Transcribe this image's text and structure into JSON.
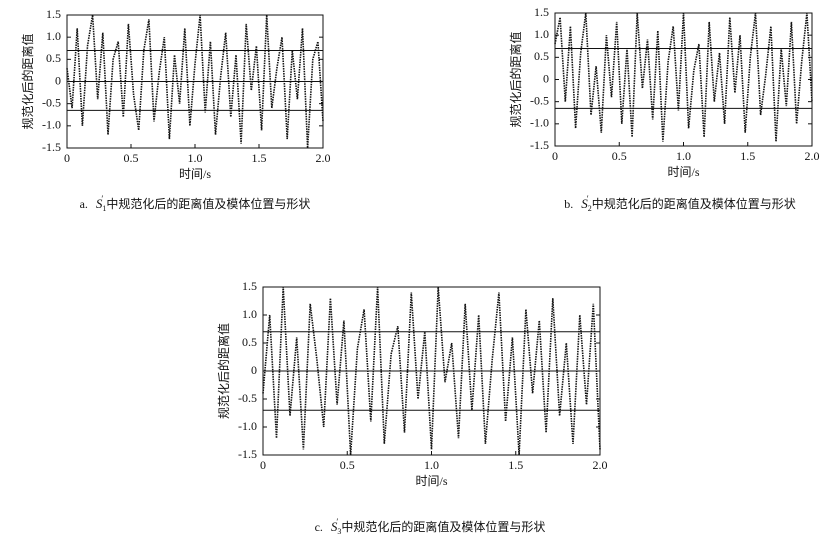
{
  "chart_data": [
    {
      "type": "line",
      "ylabel": "规范化后的距离值",
      "xlabel": "时间/s",
      "caption": {
        "label": "a.",
        "symbol": "S",
        "subscript": "1",
        "superscript": "′",
        "text": "中规范化后的距离值及模体位置与形状"
      },
      "xlim": [
        0,
        2
      ],
      "ylim": [
        -1.5,
        1.5
      ],
      "xticks": [
        0,
        0.5,
        {
          "value": 1,
          "label": "1.0"
        },
        1.5,
        {
          "value": 2,
          "label": "2.0"
        }
      ],
      "yticks": [
        1.5,
        {
          "value": 1,
          "label": "1.0"
        },
        0.5,
        0,
        -0.5,
        {
          "value": -1,
          "label": "-1.0"
        },
        -1.5
      ],
      "threshold_lines": [
        0.7,
        0,
        -0.65
      ],
      "color": "#111111",
      "x": [
        0,
        0.04,
        0.08,
        0.12,
        0.16,
        0.2,
        0.24,
        0.28,
        0.32,
        0.36,
        0.4,
        0.44,
        0.48,
        0.52,
        0.56,
        0.6,
        0.64,
        0.68,
        0.72,
        0.76,
        0.8,
        0.84,
        0.88,
        0.92,
        0.96,
        1,
        1.04,
        1.08,
        1.12,
        1.16,
        1.2,
        1.24,
        1.28,
        1.32,
        1.36,
        1.4,
        1.44,
        1.48,
        1.52,
        1.56,
        1.6,
        1.64,
        1.68,
        1.72,
        1.76,
        1.8,
        1.84,
        1.88,
        1.92,
        1.96,
        2
      ],
      "values": [
        0.3,
        -0.6,
        1.2,
        -1.0,
        0.8,
        1.5,
        -0.4,
        1.1,
        -1.2,
        0.5,
        0.9,
        -0.8,
        1.3,
        -0.3,
        -1.1,
        0.7,
        1.4,
        -0.9,
        0.2,
        1.0,
        -1.3,
        0.6,
        -0.5,
        1.2,
        -1.0,
        0.4,
        1.5,
        -0.7,
        0.9,
        -1.2,
        0.1,
        1.1,
        -0.8,
        0.6,
        -1.4,
        1.3,
        -0.2,
        0.8,
        -1.1,
        1.5,
        -0.6,
        0.3,
        1.0,
        -1.3,
        0.7,
        -0.4,
        1.2,
        -1.5,
        0.5,
        0.9,
        -0.9
      ]
    },
    {
      "type": "line",
      "ylabel": "规范化后的距离值",
      "xlabel": "时间/s",
      "caption": {
        "label": "b.",
        "symbol": "S",
        "subscript": "2",
        "superscript": "′",
        "text": "中规范化后的距离值及模体位置与形状"
      },
      "xlim": [
        0,
        2
      ],
      "ylim": [
        -1.5,
        1.5
      ],
      "xticks": [
        0,
        0.5,
        {
          "value": 1,
          "label": "1.0"
        },
        1.5,
        {
          "value": 2,
          "label": "2.0"
        }
      ],
      "yticks": [
        1.5,
        {
          "value": 1,
          "label": "1.0"
        },
        0.5,
        0,
        -0.5,
        {
          "value": -1,
          "label": "-1.0"
        },
        -1.5
      ],
      "threshold_lines": [
        0.7,
        -0.65
      ],
      "color": "#111111",
      "x": [
        0,
        0.04,
        0.08,
        0.12,
        0.16,
        0.2,
        0.24,
        0.28,
        0.32,
        0.36,
        0.4,
        0.44,
        0.48,
        0.52,
        0.56,
        0.6,
        0.64,
        0.68,
        0.72,
        0.76,
        0.8,
        0.84,
        0.88,
        0.92,
        0.96,
        1,
        1.04,
        1.08,
        1.12,
        1.16,
        1.2,
        1.24,
        1.28,
        1.32,
        1.36,
        1.4,
        1.44,
        1.48,
        1.52,
        1.56,
        1.6,
        1.64,
        1.68,
        1.72,
        1.76,
        1.8,
        1.84,
        1.88,
        1.92,
        1.96,
        2
      ],
      "values": [
        0.8,
        1.4,
        -0.5,
        1.2,
        -1.1,
        0.6,
        1.5,
        -0.8,
        0.3,
        -1.2,
        1.0,
        -0.4,
        1.3,
        -1.0,
        0.7,
        -1.3,
        1.5,
        -0.2,
        0.9,
        -0.9,
        1.1,
        -1.4,
        0.4,
        1.2,
        -0.7,
        1.5,
        -1.1,
        0.2,
        0.8,
        -1.3,
        1.3,
        -0.5,
        0.6,
        -1.0,
        1.4,
        -0.3,
        1.0,
        -1.2,
        0.5,
        1.5,
        -0.8,
        0.1,
        1.2,
        -1.4,
        0.7,
        -0.6,
        1.3,
        -1.0,
        0.4,
        1.5,
        -0.5
      ]
    },
    {
      "type": "line",
      "ylabel": "规范化后的距离值",
      "xlabel": "时间/s",
      "caption": {
        "label": "c.",
        "symbol": "S",
        "subscript": "3",
        "superscript": "′",
        "text": "中规范化后的距离值及模体位置与形状"
      },
      "xlim": [
        0,
        2
      ],
      "ylim": [
        -1.5,
        1.5
      ],
      "xticks": [
        0,
        0.5,
        {
          "value": 1,
          "label": "1.0"
        },
        1.5,
        {
          "value": 2,
          "label": "2.0"
        }
      ],
      "yticks": [
        1.5,
        {
          "value": 1,
          "label": "1.0"
        },
        0.5,
        0,
        -0.5,
        {
          "value": -1,
          "label": "-1.0"
        },
        -1.5
      ],
      "threshold_lines": [
        0.7,
        0,
        -0.7
      ],
      "color": "#111111",
      "x": [
        0,
        0.04,
        0.08,
        0.12,
        0.16,
        0.2,
        0.24,
        0.28,
        0.32,
        0.36,
        0.4,
        0.44,
        0.48,
        0.52,
        0.56,
        0.6,
        0.64,
        0.68,
        0.72,
        0.76,
        0.8,
        0.84,
        0.88,
        0.92,
        0.96,
        1,
        1.04,
        1.08,
        1.12,
        1.16,
        1.2,
        1.24,
        1.28,
        1.32,
        1.36,
        1.4,
        1.44,
        1.48,
        1.52,
        1.56,
        1.6,
        1.64,
        1.68,
        1.72,
        1.76,
        1.8,
        1.84,
        1.88,
        1.92,
        1.96,
        2
      ],
      "values": [
        -0.4,
        1.0,
        -1.2,
        1.5,
        -0.8,
        0.6,
        -1.4,
        1.2,
        0.2,
        -1.0,
        1.3,
        -0.6,
        0.9,
        -1.5,
        0.4,
        1.1,
        -0.9,
        1.5,
        -1.3,
        0.3,
        0.8,
        -1.1,
        1.4,
        -0.5,
        0.7,
        -1.4,
        1.5,
        -0.2,
        0.5,
        -1.2,
        1.2,
        -0.7,
        1.0,
        -1.3,
        0.2,
        1.4,
        -0.9,
        0.6,
        -1.5,
        1.1,
        -0.4,
        0.9,
        -1.1,
        1.3,
        -0.8,
        0.5,
        -1.3,
        1.0,
        -0.6,
        1.2,
        -1.4
      ]
    }
  ]
}
